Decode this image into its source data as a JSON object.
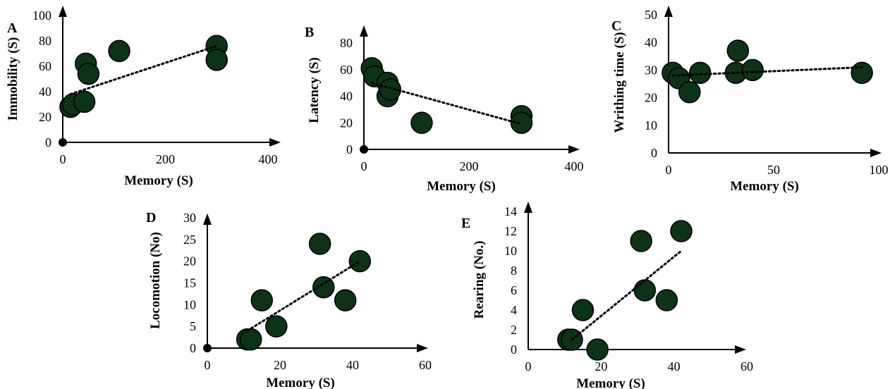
{
  "colors": {
    "point_fill": "#0d3316",
    "point_stroke": "#000000",
    "axis": "#000000",
    "trendline": "#000000",
    "background": "#ffffff"
  },
  "chart_data": [
    {
      "type": "scatter",
      "panel_label": "A",
      "xlabel": "Memory (S)",
      "ylabel": "Immobility (S)",
      "xlim": [
        0,
        400
      ],
      "ylim": [
        0,
        100
      ],
      "xticks": [
        0,
        200,
        400
      ],
      "yticks": [
        0,
        20,
        40,
        60,
        80,
        100
      ],
      "x": [
        15,
        20,
        42,
        45,
        50,
        110,
        300,
        300
      ],
      "y": [
        28,
        30,
        32,
        62,
        54,
        72,
        76,
        65
      ],
      "origin_marker": true,
      "trendline": {
        "style": "dotted",
        "x": [
          15,
          300
        ],
        "y": [
          38,
          76
        ]
      }
    },
    {
      "type": "scatter",
      "panel_label": "B",
      "xlabel": "Memory (S)",
      "ylabel": "Latency (S)",
      "xlim": [
        0,
        400
      ],
      "ylim": [
        0,
        80
      ],
      "xticks": [
        0,
        200,
        400
      ],
      "yticks": [
        0,
        20,
        40,
        60,
        80
      ],
      "x": [
        15,
        20,
        45,
        45,
        50,
        110,
        300,
        300
      ],
      "y": [
        61,
        55,
        50,
        40,
        45,
        20,
        25,
        20
      ],
      "origin_marker": true,
      "trendline": {
        "style": "dotted",
        "x": [
          15,
          300
        ],
        "y": [
          50,
          19
        ]
      }
    },
    {
      "type": "scatter",
      "panel_label": "C",
      "xlabel": "Memory (S)",
      "ylabel": "Writhing time (S)",
      "xlim": [
        0,
        100
      ],
      "ylim": [
        0,
        50
      ],
      "xticks": [
        0,
        50,
        100
      ],
      "yticks": [
        0,
        10,
        20,
        30,
        40,
        50
      ],
      "x": [
        2,
        5,
        10,
        15,
        32,
        33,
        40,
        92
      ],
      "y": [
        29,
        27,
        22,
        29,
        29,
        37,
        30,
        29
      ],
      "origin_marker": false,
      "trendline": {
        "style": "dotted",
        "x": [
          2,
          92
        ],
        "y": [
          28,
          31
        ]
      }
    },
    {
      "type": "scatter",
      "panel_label": "D",
      "xlabel": "Memory (S)",
      "ylabel": "Locomotion (No)",
      "xlim": [
        0,
        60
      ],
      "ylim": [
        0,
        30
      ],
      "xticks": [
        0,
        20,
        40,
        60
      ],
      "yticks": [
        0,
        5,
        10,
        15,
        20,
        25,
        30
      ],
      "x": [
        11,
        12,
        15,
        19,
        31,
        32,
        38,
        42
      ],
      "y": [
        2,
        2,
        11,
        5,
        24,
        14,
        11,
        20
      ],
      "origin_marker": true,
      "trendline": {
        "style": "dotted",
        "x": [
          11,
          42
        ],
        "y": [
          4,
          20
        ]
      }
    },
    {
      "type": "scatter",
      "panel_label": "E",
      "xlabel": "Memory (S)",
      "ylabel": "Rearing (No.)",
      "xlim": [
        0,
        60
      ],
      "ylim": [
        0,
        14
      ],
      "xticks": [
        0,
        20,
        40,
        60
      ],
      "yticks": [
        0,
        2,
        4,
        6,
        8,
        10,
        12,
        14
      ],
      "x": [
        11,
        12,
        15,
        19,
        31,
        32,
        38,
        42
      ],
      "y": [
        1,
        1,
        4,
        0,
        11,
        6,
        5,
        12
      ],
      "origin_marker": false,
      "trendline": {
        "style": "dotted",
        "x": [
          12,
          42
        ],
        "y": [
          1,
          10
        ]
      }
    }
  ]
}
